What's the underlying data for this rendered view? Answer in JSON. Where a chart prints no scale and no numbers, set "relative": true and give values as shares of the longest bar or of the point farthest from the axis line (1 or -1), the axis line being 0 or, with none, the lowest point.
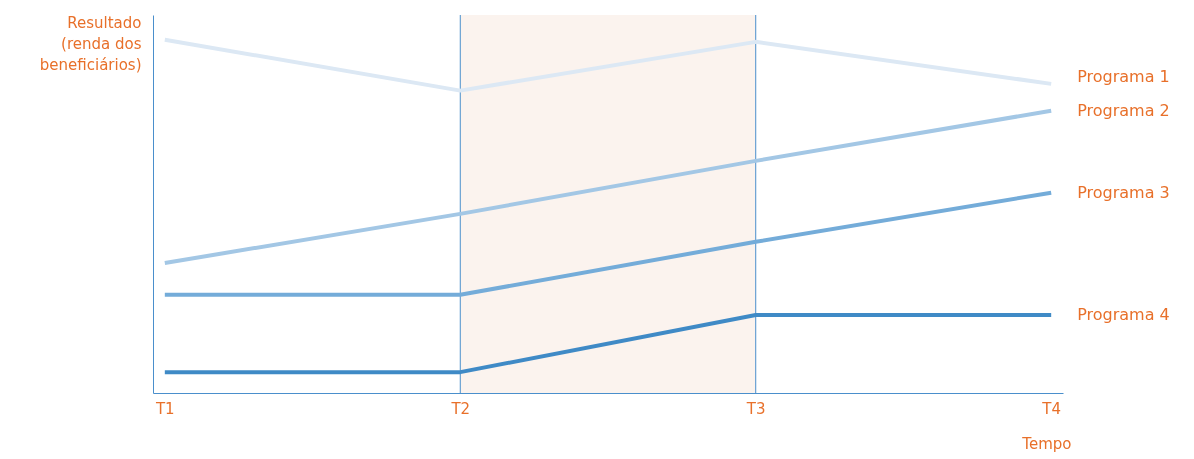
{
  "chart_data": {
    "type": "line",
    "relative": true,
    "xlabel": "Tempo",
    "ylabel": "Resultado (renda dos beneficiários)",
    "categories": [
      "T1",
      "T2",
      "T3",
      "T4"
    ],
    "series": [
      {
        "name": "Programa 1",
        "color": "#dce8f4",
        "values": [
          1,
          0.856,
          0.994,
          0.875
        ]
      },
      {
        "name": "Programa 2",
        "color": "#a3c7e5",
        "values": [
          0.368,
          0.507,
          0.657,
          0.799
        ]
      },
      {
        "name": "Programa 3",
        "color": "#74acd9",
        "values": [
          0.278,
          0.278,
          0.428,
          0.567
        ]
      },
      {
        "name": "Programa 4",
        "color": "#3f8ac6",
        "values": [
          0.059,
          0.059,
          0.221,
          0.221
        ]
      }
    ],
    "bands": [
      {
        "axis": "x",
        "from": "T2",
        "to": "T3",
        "color": "#fbf3ee"
      }
    ],
    "ref_lines": [
      {
        "axis": "x",
        "value": "T2",
        "color": "#4a8fcc"
      },
      {
        "axis": "x",
        "value": "T3",
        "color": "#4a8fcc"
      }
    ],
    "grid": false,
    "marker": "none",
    "line_style": "solid"
  }
}
